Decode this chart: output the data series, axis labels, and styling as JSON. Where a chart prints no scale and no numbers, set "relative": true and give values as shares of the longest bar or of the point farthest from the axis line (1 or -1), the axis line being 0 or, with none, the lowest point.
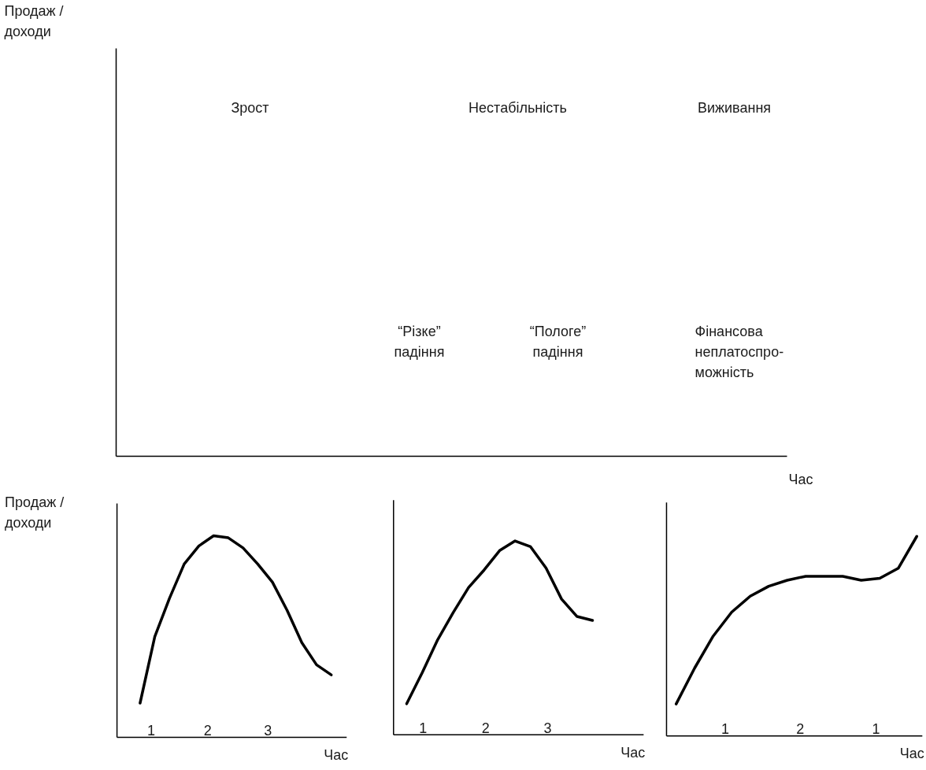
{
  "chart_data": [
    {
      "type": "other",
      "xlabel": "Час",
      "ylabel": "Продаж /\nдоходи",
      "annotations": [
        "Зрост",
        "Нестабільність",
        "Виживання",
        "“Різке”\nпадіння",
        "“Пологе”\nпадіння",
        "Фінансова\nнеплатоспро-\nможність"
      ]
    },
    {
      "type": "line",
      "relative": true,
      "color": "#000000",
      "xlabel": "Час",
      "ylabel": "Продаж /\nдоходи",
      "annotations": [
        "1",
        "2",
        "3"
      ],
      "categories": [
        null,
        null,
        null,
        null,
        null,
        null,
        null,
        null,
        null,
        null,
        null,
        null,
        null,
        null
      ],
      "values": [
        0.17,
        0.5,
        0.69,
        0.86,
        0.95,
        1.0,
        0.99,
        0.94,
        0.86,
        0.77,
        0.63,
        0.47,
        0.36,
        0.31
      ]
    },
    {
      "type": "line",
      "relative": true,
      "color": "#000000",
      "xlabel": "Час",
      "annotations": [
        "1",
        "2",
        "3"
      ],
      "categories": [
        null,
        null,
        null,
        null,
        null,
        null,
        null,
        null,
        null,
        null,
        null,
        null,
        null
      ],
      "values": [
        0.16,
        0.32,
        0.49,
        0.63,
        0.76,
        0.85,
        0.95,
        1.0,
        0.97,
        0.86,
        0.7,
        0.61,
        0.59
      ]
    },
    {
      "type": "line",
      "relative": true,
      "color": "#000000",
      "xlabel": "Час",
      "annotations": [
        "1",
        "2",
        "1"
      ],
      "categories": [
        null,
        null,
        null,
        null,
        null,
        null,
        null,
        null,
        null,
        null,
        null,
        null,
        null,
        null
      ],
      "values": [
        0.16,
        0.34,
        0.5,
        0.62,
        0.7,
        0.75,
        0.78,
        0.8,
        0.8,
        0.8,
        0.78,
        0.79,
        0.84,
        1.0
      ]
    }
  ]
}
